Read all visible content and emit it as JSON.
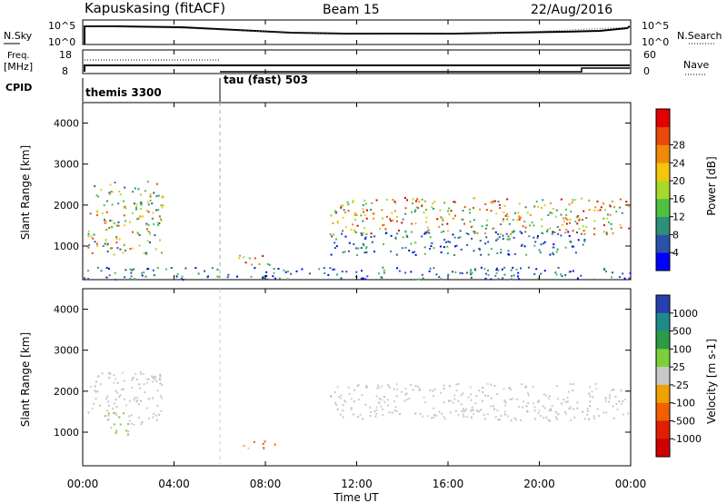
{
  "header": {
    "station": "Kapuskasing (fitACF)",
    "beam": "Beam 15",
    "date": "22/Aug/2016"
  },
  "noise_panel": {
    "left_label": "N.Sky",
    "right_label": "N.Search",
    "left_ticks": [
      "10^5",
      "10^0"
    ],
    "right_ticks": [
      "10^5",
      "10^0"
    ]
  },
  "freq_panel": {
    "left_label_1": "Freq.",
    "left_label_2": "[MHz]",
    "right_label": "Nave",
    "left_ticks": [
      "18",
      "8"
    ],
    "right_ticks": [
      "60",
      "0"
    ]
  },
  "cpid": {
    "label": "CPID",
    "programs": [
      {
        "name": "themis 3300",
        "start_hour": 0
      },
      {
        "name": "tau (fast) 503",
        "start_hour": 6
      }
    ]
  },
  "chart_data": [
    {
      "type": "heatmap",
      "parameter": "Power",
      "ylabel": "Slant Range [km]",
      "xlabel": "Time UT",
      "xlim": [
        "00:00",
        "24:00"
      ],
      "ylim": [
        180,
        4500
      ],
      "yticks": [
        1000,
        2000,
        3000,
        4000
      ],
      "colorbar": {
        "label": "Power [dB]",
        "ticks": [
          "4",
          "8",
          "12",
          "16",
          "20",
          "24",
          "28"
        ],
        "colors": [
          "#0000ff",
          "#2a52a8",
          "#2f8f7a",
          "#4fbf3f",
          "#a8d82a",
          "#f4c60c",
          "#f08a0a",
          "#e84a0a",
          "#e20000"
        ]
      },
      "scatter_regions": [
        {
          "t0": 0.2,
          "t1": 3.5,
          "r0": 800,
          "r1": 2600,
          "level": "medium-high"
        },
        {
          "t0": 6.8,
          "t1": 8.3,
          "r0": 500,
          "r1": 800,
          "level": "high"
        },
        {
          "t0": 10.8,
          "t1": 23.9,
          "r0": 1300,
          "r1": 2200,
          "level": "high"
        },
        {
          "t0": 10.8,
          "t1": 22.0,
          "r0": 800,
          "r1": 1400,
          "level": "low"
        },
        {
          "t0": 0,
          "t1": 24,
          "r0": 200,
          "r1": 500,
          "level": "low"
        }
      ]
    },
    {
      "type": "heatmap",
      "parameter": "Velocity",
      "ylabel": "Slant Range [km]",
      "xlabel": "Time UT",
      "xlim": [
        "00:00",
        "24:00"
      ],
      "ylim": [
        180,
        4500
      ],
      "yticks": [
        1000,
        2000,
        3000,
        4000
      ],
      "colorbar": {
        "label": "Velocity [m s-1]",
        "ticks": [
          "1000",
          "500",
          "100",
          "25",
          "-25",
          "-100",
          "-500",
          "-1000"
        ],
        "colors": [
          "#2a3fb0",
          "#1f8a8a",
          "#2d9a45",
          "#7ccf3a",
          "#c8c8c8",
          "#f0a000",
          "#f06000",
          "#e02000",
          "#d00000"
        ]
      },
      "scatter_regions": [
        {
          "t0": 0.2,
          "t1": 3.5,
          "r0": 1200,
          "r1": 2500,
          "level": "near-zero"
        },
        {
          "t0": 0.8,
          "t1": 2.0,
          "r0": 900,
          "r1": 1500,
          "level": "positive"
        },
        {
          "t0": 6.8,
          "t1": 8.5,
          "r0": 600,
          "r1": 800,
          "level": "negative"
        },
        {
          "t0": 10.8,
          "t1": 23.9,
          "r0": 1300,
          "r1": 2200,
          "level": "near-zero"
        }
      ]
    }
  ],
  "time_axis": {
    "tick_labels": [
      "00:00",
      "04:00",
      "08:00",
      "12:00",
      "16:00",
      "20:00",
      "00:00"
    ],
    "label": "Time UT"
  }
}
